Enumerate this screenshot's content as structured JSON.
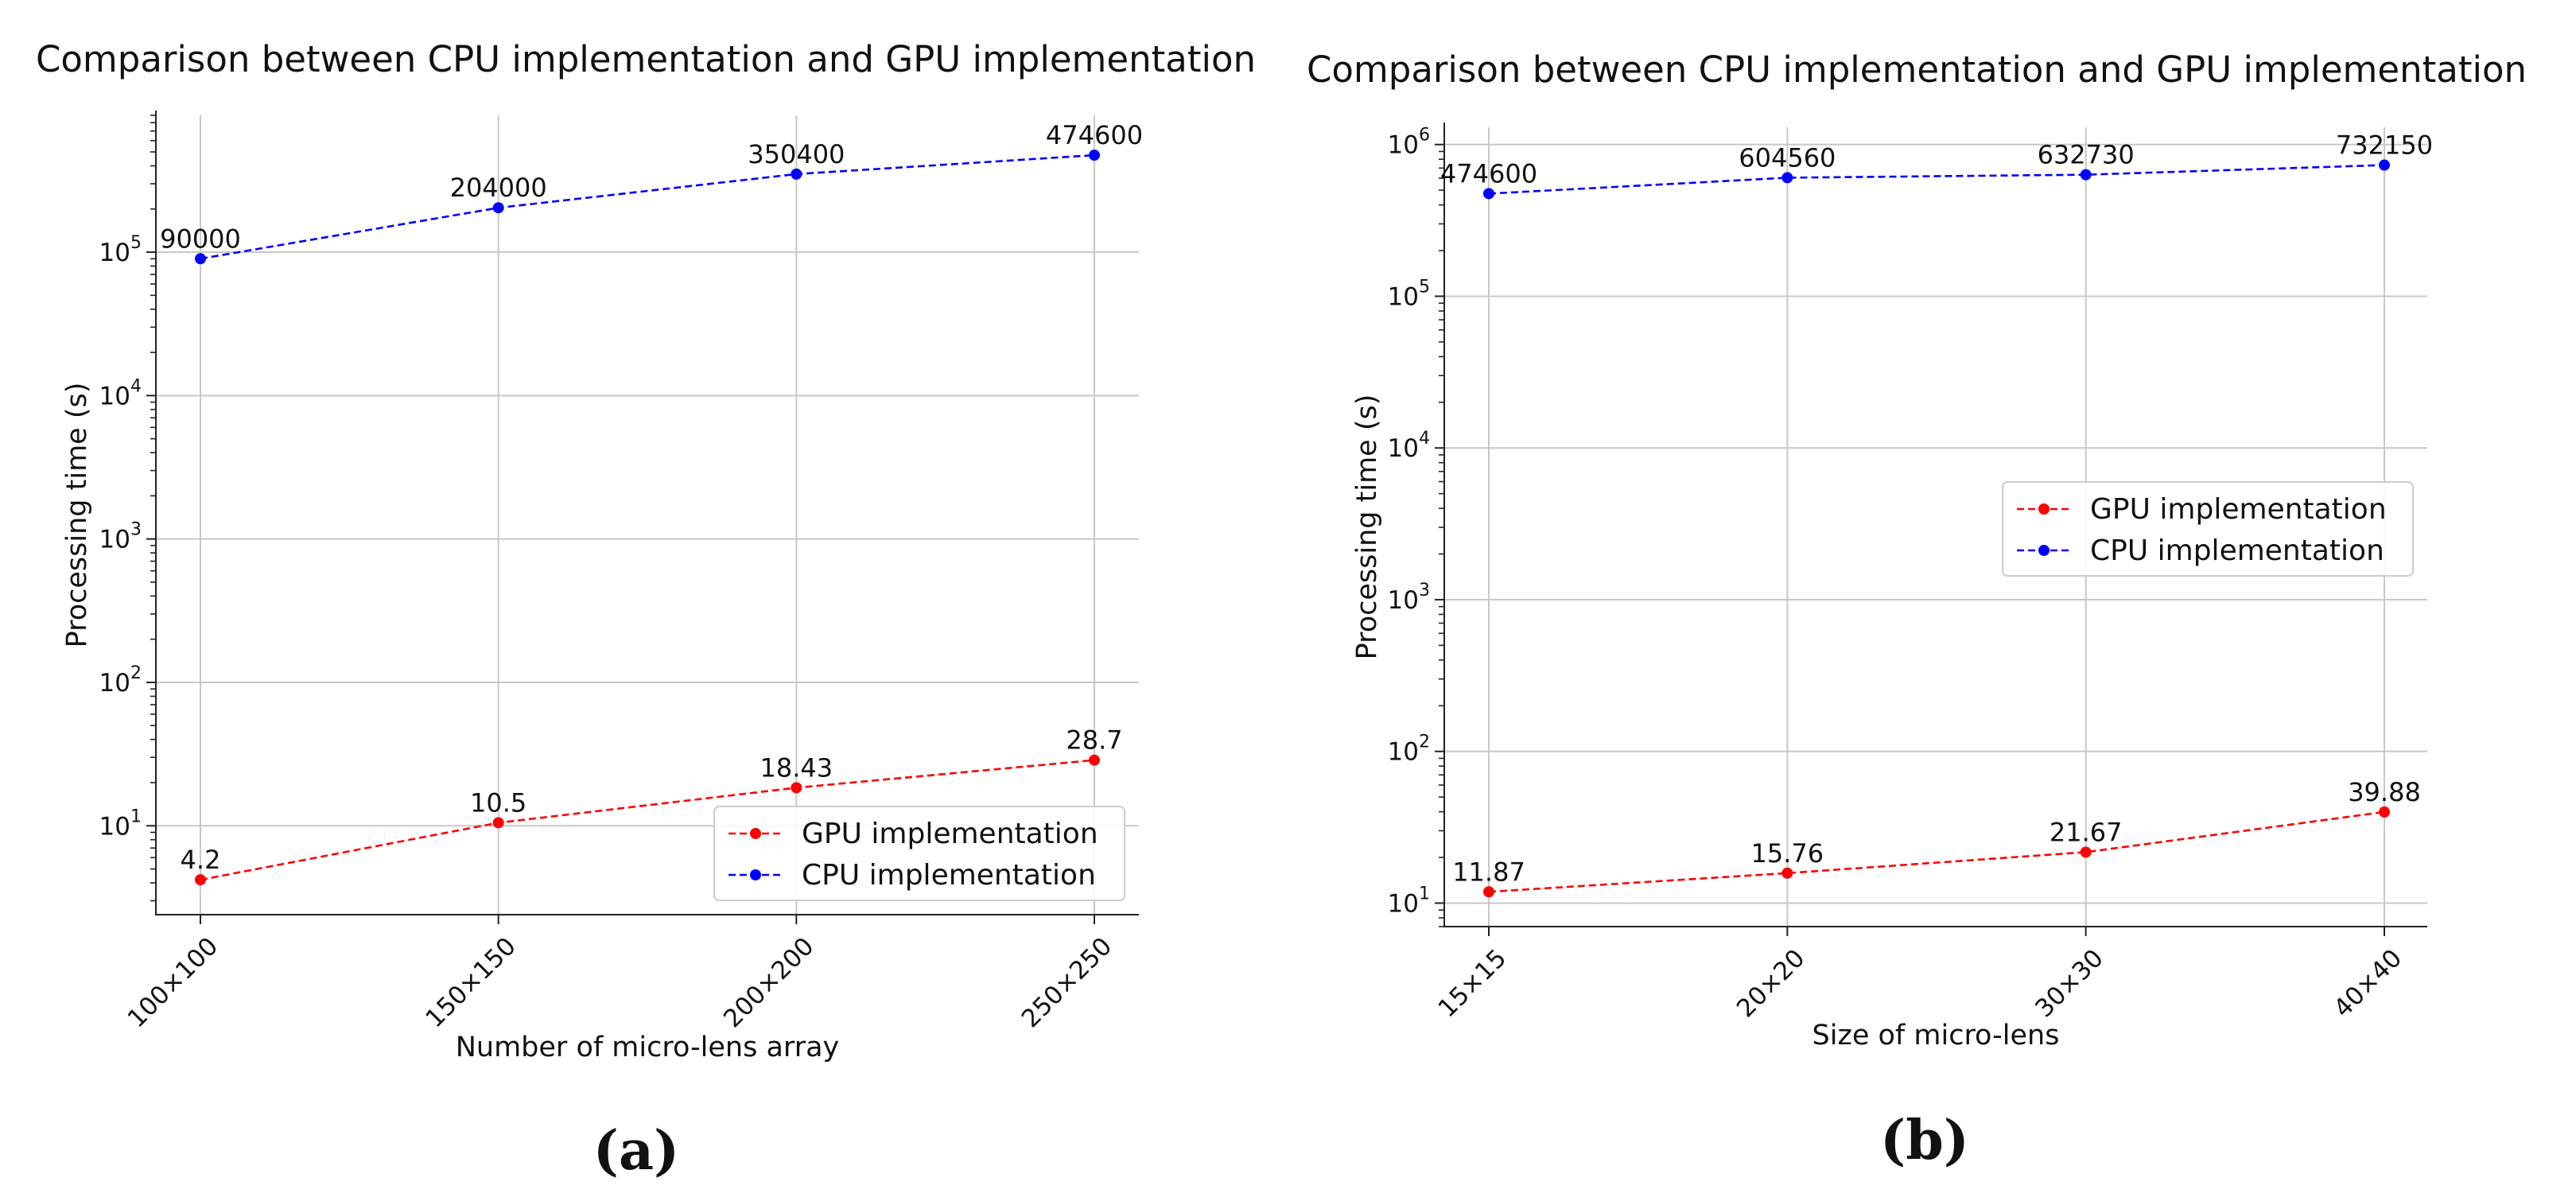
{
  "chart_data": [
    {
      "type": "line",
      "title": "Comparison between CPU implementation and GPU implementation",
      "xlabel": "Number of micro-lens array",
      "ylabel": "Processing time (s)",
      "yscale": "log",
      "ylim": [
        2.4,
        900000
      ],
      "grid": true,
      "legend_placement": "lower-right",
      "caption": "(a)",
      "categories": [
        "100×100",
        "150×150",
        "200×200",
        "250×250"
      ],
      "yticks": [
        {
          "value": 10,
          "base": "10",
          "exp": "1"
        },
        {
          "value": 100,
          "base": "10",
          "exp": "2"
        },
        {
          "value": 1000,
          "base": "10",
          "exp": "3"
        },
        {
          "value": 10000,
          "base": "10",
          "exp": "4"
        },
        {
          "value": 100000,
          "base": "10",
          "exp": "5"
        }
      ],
      "series": [
        {
          "name": "GPU implementation",
          "color": "#ff0000",
          "values": [
            4.2,
            10.5,
            18.43,
            28.7
          ],
          "labels": [
            "4.2",
            "10.5",
            "18.43",
            "28.7"
          ]
        },
        {
          "name": "CPU implementation",
          "color": "#0000ff",
          "values": [
            90000,
            204000,
            350400,
            474600
          ],
          "labels": [
            "90000",
            "204000",
            "350400",
            "474600"
          ]
        }
      ]
    },
    {
      "type": "line",
      "title": "Comparison between CPU implementation and GPU implementation",
      "xlabel": "Size of micro-lens",
      "ylabel": "Processing time (s)",
      "yscale": "log",
      "ylim": [
        7,
        1300000
      ],
      "grid": true,
      "legend_placement": "center-right",
      "caption": "(b)",
      "categories": [
        "15×15",
        "20×20",
        "30×30",
        "40×40"
      ],
      "yticks": [
        {
          "value": 10,
          "base": "10",
          "exp": "1"
        },
        {
          "value": 100,
          "base": "10",
          "exp": "2"
        },
        {
          "value": 1000,
          "base": "10",
          "exp": "3"
        },
        {
          "value": 10000,
          "base": "10",
          "exp": "4"
        },
        {
          "value": 100000,
          "base": "10",
          "exp": "5"
        },
        {
          "value": 1000000,
          "base": "10",
          "exp": "6"
        }
      ],
      "series": [
        {
          "name": "GPU implementation",
          "color": "#ff0000",
          "values": [
            11.87,
            15.76,
            21.67,
            39.88
          ],
          "labels": [
            "11.87",
            "15.76",
            "21.67",
            "39.88"
          ]
        },
        {
          "name": "CPU implementation",
          "color": "#0000ff",
          "values": [
            474600,
            604560,
            632730,
            732150
          ],
          "labels": [
            "474600",
            "604560",
            "632730",
            "732150"
          ]
        }
      ]
    }
  ]
}
